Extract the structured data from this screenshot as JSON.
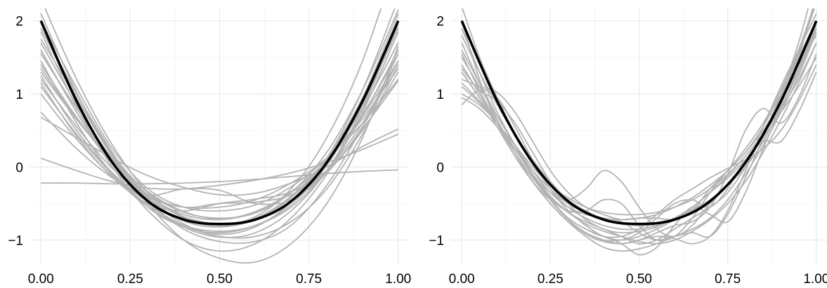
{
  "colors": {
    "background": "#ffffff",
    "grid_major": "#ebebeb",
    "grid_minor": "#f4f4f4",
    "sample_curve": "#b3b3b3",
    "true_curve": "#000000"
  },
  "chart_data": [
    {
      "type": "line",
      "title": "",
      "xlabel": "",
      "ylabel": "",
      "xlim": [
        -0.03,
        1.03
      ],
      "ylim": [
        -1.33,
        2.17
      ],
      "x_ticks": [
        {
          "value": 0,
          "label": "0.00"
        },
        {
          "value": 0.25,
          "label": "0.25"
        },
        {
          "value": 0.5,
          "label": "0.50"
        },
        {
          "value": 0.75,
          "label": "0.75"
        },
        {
          "value": 1,
          "label": "1.00"
        }
      ],
      "y_ticks": [
        {
          "value": -1,
          "label": "−1"
        },
        {
          "value": 0,
          "label": "0"
        },
        {
          "value": 1,
          "label": "1"
        },
        {
          "value": 2,
          "label": "2"
        }
      ],
      "grid": true,
      "x_sample": [
        0,
        0.1,
        0.2,
        0.3,
        0.4,
        0.5,
        0.6,
        0.7,
        0.8,
        0.9,
        1.0
      ],
      "true_curve": {
        "color": "#000000",
        "x": [
          0,
          0.1,
          0.2,
          0.3,
          0.4,
          0.5,
          0.6,
          0.7,
          0.8,
          0.9,
          1.0
        ],
        "values": [
          2.0,
          0.9,
          0.06,
          -0.47,
          -0.72,
          -0.78,
          -0.72,
          -0.47,
          0.06,
          0.9,
          2.0
        ]
      },
      "sample_curves": [
        [
          2.1,
          1.02,
          0.18,
          -0.35,
          -0.62,
          -0.7,
          -0.63,
          -0.35,
          0.2,
          1.05,
          2.15
        ],
        [
          1.85,
          0.82,
          0.0,
          -0.55,
          -0.82,
          -0.9,
          -0.8,
          -0.52,
          0.02,
          0.85,
          1.9
        ],
        [
          1.6,
          0.75,
          0.05,
          -0.4,
          -0.65,
          -0.72,
          -0.62,
          -0.35,
          0.1,
          0.8,
          1.7
        ],
        [
          1.45,
          0.6,
          -0.1,
          -0.55,
          -0.8,
          -0.88,
          -0.8,
          -0.55,
          -0.05,
          0.7,
          1.6
        ],
        [
          1.35,
          0.66,
          0.09,
          -0.34,
          -0.61,
          -0.71,
          -0.61,
          -0.34,
          0.09,
          0.66,
          1.35
        ],
        [
          1.2,
          0.55,
          -0.02,
          -0.43,
          -0.68,
          -0.78,
          -0.72,
          -0.48,
          -0.05,
          0.6,
          1.45
        ],
        [
          1.1,
          0.45,
          -0.1,
          -0.52,
          -0.8,
          -0.95,
          -0.95,
          -0.75,
          -0.3,
          0.45,
          1.4
        ],
        [
          1.75,
          0.95,
          0.15,
          -0.45,
          -0.85,
          -1.02,
          -1.02,
          -0.8,
          -0.25,
          0.55,
          1.55
        ],
        [
          0.75,
          0.25,
          -0.15,
          -0.42,
          -0.55,
          -0.55,
          -0.45,
          -0.22,
          0.12,
          0.6,
          1.2
        ],
        [
          0.68,
          0.4,
          0.12,
          -0.12,
          -0.28,
          -0.38,
          -0.36,
          -0.22,
          0.0,
          0.28,
          0.52
        ],
        [
          1.9,
          1.0,
          0.2,
          -0.5,
          -1.0,
          -1.25,
          -1.3,
          -1.05,
          -0.5,
          0.4,
          1.65
        ],
        [
          1.6,
          0.75,
          0.0,
          -0.6,
          -1.0,
          -1.15,
          -1.05,
          -0.7,
          -0.1,
          0.75,
          1.85
        ],
        [
          2.3,
          1.2,
          0.3,
          -0.35,
          -0.7,
          -0.8,
          -0.68,
          -0.3,
          0.4,
          1.45,
          2.9
        ],
        [
          1.9,
          0.95,
          0.15,
          -0.42,
          -0.78,
          -0.92,
          -0.82,
          -0.48,
          0.12,
          1.05,
          2.3
        ],
        [
          1.3,
          0.65,
          0.08,
          -0.38,
          -0.68,
          -0.8,
          -0.72,
          -0.42,
          0.12,
          0.95,
          2.1
        ],
        [
          2.0,
          1.08,
          0.25,
          -0.3,
          -0.55,
          -0.6,
          -0.52,
          -0.27,
          0.12,
          0.7,
          1.45
        ],
        [
          1.55,
          0.8,
          0.12,
          -0.42,
          -0.74,
          -0.82,
          -0.72,
          -0.42,
          0.06,
          0.72,
          1.55
        ],
        [
          1.4,
          0.68,
          0.05,
          -0.38,
          -0.55,
          -0.5,
          -0.48,
          -0.38,
          -0.06,
          0.55,
          1.45
        ],
        [
          1.15,
          0.42,
          -0.14,
          -0.5,
          -0.6,
          -0.5,
          -0.44,
          -0.34,
          -0.05,
          0.5,
          1.3
        ],
        [
          0.12,
          -0.05,
          -0.2,
          -0.29,
          -0.3,
          -0.25,
          -0.18,
          -0.08,
          0.06,
          0.24,
          0.45
        ],
        [
          -0.22,
          -0.22,
          -0.23,
          -0.23,
          -0.22,
          -0.2,
          -0.17,
          -0.13,
          -0.09,
          -0.06,
          -0.04
        ],
        [
          1.0,
          0.38,
          -0.12,
          -0.38,
          -0.3,
          -0.32,
          -0.5,
          -0.45,
          -0.08,
          0.52,
          1.18
        ],
        [
          1.25,
          0.5,
          -0.08,
          -0.48,
          -0.72,
          -0.8,
          -0.7,
          -0.4,
          0.1,
          0.8,
          1.7
        ],
        [
          1.7,
          0.85,
          0.1,
          -0.48,
          -0.82,
          -0.96,
          -0.9,
          -0.6,
          -0.05,
          0.8,
          1.95
        ]
      ]
    },
    {
      "type": "line",
      "title": "",
      "xlabel": "",
      "ylabel": "",
      "xlim": [
        -0.03,
        1.03
      ],
      "ylim": [
        -1.33,
        2.17
      ],
      "x_ticks": [
        {
          "value": 0,
          "label": "0.00"
        },
        {
          "value": 0.25,
          "label": "0.25"
        },
        {
          "value": 0.5,
          "label": "0.50"
        },
        {
          "value": 0.75,
          "label": "0.75"
        },
        {
          "value": 1,
          "label": "1.00"
        }
      ],
      "y_ticks": [
        {
          "value": -1,
          "label": "−1"
        },
        {
          "value": 0,
          "label": "0"
        },
        {
          "value": 1,
          "label": "1"
        },
        {
          "value": 2,
          "label": "2"
        }
      ],
      "grid": true,
      "x_sample": [
        0,
        0.05,
        0.1,
        0.15,
        0.2,
        0.25,
        0.3,
        0.35,
        0.4,
        0.45,
        0.5,
        0.55,
        0.6,
        0.65,
        0.7,
        0.75,
        0.8,
        0.85,
        0.9,
        0.95,
        1.0
      ],
      "true_curve": {
        "color": "#000000",
        "x": [
          0,
          0.1,
          0.2,
          0.3,
          0.4,
          0.5,
          0.6,
          0.7,
          0.8,
          0.9,
          1.0
        ],
        "values": [
          2.0,
          0.9,
          0.06,
          -0.47,
          -0.72,
          -0.78,
          -0.72,
          -0.47,
          0.06,
          0.9,
          2.0
        ]
      },
      "sample_curves": [
        [
          2.2,
          1.5,
          0.95,
          0.45,
          0.05,
          -0.3,
          -0.55,
          -0.7,
          -0.8,
          -0.85,
          -0.85,
          -0.8,
          -0.72,
          -0.6,
          -0.45,
          -0.25,
          0.05,
          0.45,
          1.0,
          1.7,
          2.6
        ],
        [
          1.8,
          1.3,
          0.85,
          0.45,
          0.1,
          -0.2,
          -0.45,
          -0.6,
          -0.72,
          -0.78,
          -0.8,
          -0.78,
          -0.7,
          -0.58,
          -0.45,
          -0.25,
          0.0,
          0.35,
          0.85,
          1.5,
          2.35
        ],
        [
          1.35,
          1.05,
          0.9,
          0.6,
          0.2,
          -0.2,
          -0.5,
          -0.72,
          -0.85,
          -0.9,
          -0.88,
          -0.82,
          -0.7,
          -0.55,
          -0.35,
          -0.12,
          0.15,
          0.45,
          0.82,
          1.3,
          1.9
        ],
        [
          1.2,
          1.1,
          1.02,
          0.75,
          0.35,
          -0.05,
          -0.35,
          -0.55,
          -0.65,
          -0.72,
          -0.7,
          -0.65,
          -0.55,
          -0.42,
          -0.25,
          -0.05,
          0.2,
          0.5,
          0.9,
          1.35,
          1.9
        ],
        [
          0.85,
          1.05,
          0.95,
          0.55,
          0.1,
          -0.3,
          -0.6,
          -0.8,
          -0.95,
          -1.0,
          -0.95,
          -0.85,
          -0.72,
          -0.55,
          -0.35,
          -0.15,
          0.1,
          0.4,
          0.75,
          1.1,
          1.5
        ],
        [
          1.15,
          0.9,
          0.6,
          0.3,
          0.0,
          -0.25,
          -0.42,
          -0.55,
          -0.62,
          -0.65,
          -0.65,
          -0.62,
          -0.55,
          -0.45,
          -0.3,
          -0.1,
          0.15,
          0.45,
          0.8,
          1.2,
          1.7
        ],
        [
          2.0,
          1.2,
          0.6,
          0.15,
          -0.2,
          -0.45,
          -0.6,
          -0.6,
          -0.45,
          -0.5,
          -0.8,
          -1.0,
          -0.95,
          -0.7,
          -0.35,
          -0.05,
          0.25,
          0.6,
          1.05,
          1.6,
          2.25
        ],
        [
          1.55,
          1.05,
          0.6,
          0.2,
          -0.15,
          -0.45,
          -0.7,
          -0.85,
          -0.95,
          -1.05,
          -1.2,
          -1.1,
          -0.8,
          -0.55,
          -0.65,
          -0.75,
          -0.35,
          0.25,
          0.8,
          1.35,
          1.95
        ],
        [
          1.3,
          0.95,
          0.55,
          0.15,
          -0.2,
          -0.5,
          -0.75,
          -0.95,
          -1.1,
          -1.15,
          -1.12,
          -1.05,
          -0.95,
          -0.85,
          -0.7,
          -0.45,
          -0.1,
          0.3,
          0.75,
          1.25,
          1.85
        ],
        [
          1.9,
          1.3,
          0.75,
          0.3,
          -0.1,
          -0.42,
          -0.62,
          -0.75,
          -0.85,
          -0.95,
          -1.05,
          -1.0,
          -0.85,
          -0.7,
          -0.55,
          -0.35,
          0.0,
          0.45,
          0.95,
          1.5,
          2.0
        ],
        [
          1.0,
          0.85,
          0.6,
          0.25,
          -0.1,
          -0.35,
          -0.45,
          -0.3,
          -0.05,
          -0.2,
          -0.55,
          -0.85,
          -0.95,
          -0.8,
          -0.5,
          -0.25,
          0.05,
          0.45,
          0.95,
          1.55,
          2.25
        ],
        [
          1.6,
          1.15,
          0.7,
          0.3,
          -0.05,
          -0.35,
          -0.55,
          -0.65,
          -0.7,
          -0.75,
          -0.9,
          -1.0,
          -0.95,
          -0.9,
          -0.95,
          -0.65,
          -0.15,
          0.4,
          0.95,
          1.6,
          2.3
        ],
        [
          1.7,
          1.15,
          0.65,
          0.2,
          -0.2,
          -0.5,
          -0.75,
          -0.9,
          -1.0,
          -1.05,
          -1.0,
          -0.9,
          -0.8,
          -0.75,
          -0.55,
          -0.1,
          0.5,
          0.8,
          0.6,
          0.95,
          1.55
        ],
        [
          1.4,
          1.0,
          0.6,
          0.2,
          -0.15,
          -0.45,
          -0.7,
          -0.85,
          -0.95,
          -0.95,
          -0.85,
          -0.65,
          -0.45,
          -0.3,
          -0.15,
          -0.02,
          0.1,
          0.25,
          0.5,
          0.9,
          1.4
        ],
        [
          1.1,
          0.88,
          0.6,
          0.25,
          -0.12,
          -0.45,
          -0.72,
          -0.92,
          -1.02,
          -1.05,
          -1.0,
          -0.95,
          -0.98,
          -1.05,
          -0.95,
          -0.6,
          -0.05,
          0.55,
          1.1,
          1.6,
          2.1
        ],
        [
          1.5,
          1.1,
          0.7,
          0.3,
          -0.1,
          -0.45,
          -0.72,
          -0.9,
          -1.0,
          -1.0,
          -0.9,
          -0.7,
          -0.5,
          -0.45,
          -0.55,
          -0.3,
          0.1,
          0.35,
          0.35,
          0.75,
          1.3
        ],
        [
          1.3,
          0.95,
          0.6,
          0.25,
          -0.1,
          -0.4,
          -0.62,
          -0.78,
          -0.88,
          -0.95,
          -1.02,
          -1.05,
          -1.0,
          -0.88,
          -0.72,
          -0.5,
          -0.2,
          0.2,
          0.65,
          1.15,
          1.7
        ],
        [
          0.95,
          0.8,
          0.55,
          0.25,
          -0.05,
          -0.3,
          -0.5,
          -0.62,
          -0.7,
          -0.72,
          -0.7,
          -0.7,
          -0.72,
          -0.6,
          -0.3,
          -0.05,
          0.2,
          0.55,
          1.0,
          1.4,
          1.8
        ]
      ]
    }
  ]
}
